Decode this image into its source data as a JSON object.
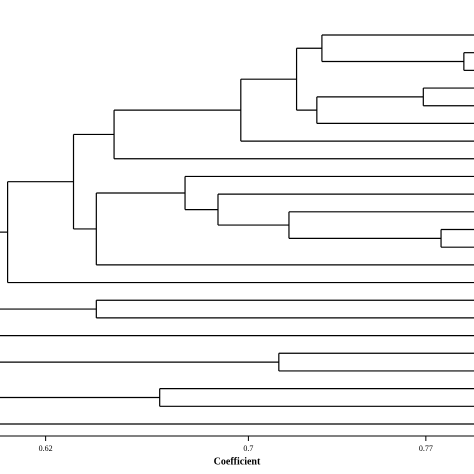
{
  "chart_data": {
    "type": "dendrogram",
    "x_label": "Coefficient",
    "xlim": [
      0.602,
      0.789
    ],
    "xticks": [
      0.62,
      0.7,
      0.77
    ],
    "color": "#000000",
    "roots": [
      {
        "height": 0.605,
        "children": [
          {
            "height": 0.631,
            "children": [
              {
                "height": 0.647,
                "children": [
                  {
                    "height": 0.697,
                    "children": [
                      {
                        "height": 0.719,
                        "children": [
                          {
                            "height": 0.729,
                            "children": [
                              {},
                              {
                                "height": 0.785,
                                "children": [
                                  {},
                                  {}
                                ]
                              }
                            ]
                          },
                          {
                            "height": 0.727,
                            "children": [
                              {
                                "height": 0.769,
                                "children": [
                                  {},
                                  {}
                                ]
                              },
                              {}
                            ]
                          }
                        ]
                      },
                      {}
                    ]
                  },
                  {}
                ]
              },
              {
                "height": 0.64,
                "children": [
                  {
                    "height": 0.675,
                    "children": [
                      {},
                      {
                        "height": 0.688,
                        "children": [
                          {},
                          {
                            "height": 0.716,
                            "children": [
                              {},
                              {
                                "height": 0.776,
                                "children": [
                                  {},
                                  {}
                                ]
                              }
                            ]
                          }
                        ]
                      }
                    ]
                  },
                  {}
                ]
              }
            ]
          },
          {}
        ]
      },
      {
        "height": 0.64,
        "children": [
          {},
          {}
        ]
      },
      {},
      {
        "height": 0.712,
        "children": [
          {},
          {}
        ]
      },
      {
        "height": 0.665,
        "children": [
          {},
          {}
        ]
      },
      {}
    ]
  }
}
